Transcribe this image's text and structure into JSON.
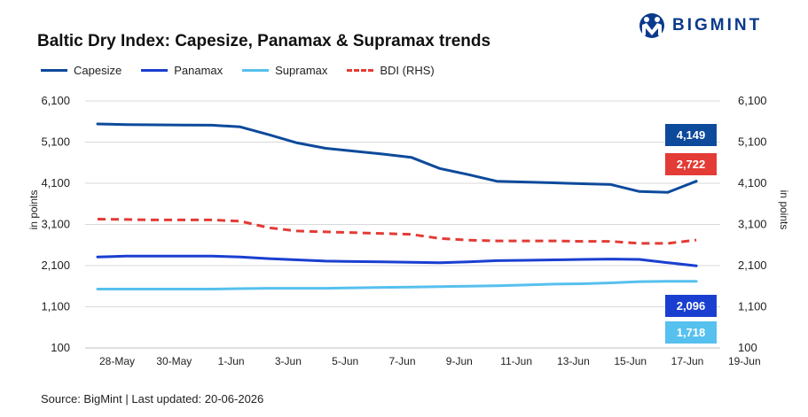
{
  "title": "Baltic Dry Index: Capesize, Panamax & Supramax trends",
  "brand": {
    "name": "BIGMINT"
  },
  "source": "Source: BigMint | Last updated: 20-06-2026",
  "colors": {
    "capesize": "#0d4a9b",
    "panamax": "#1a3fd0",
    "supramax": "#56c0ee",
    "bdi": "#e33b35",
    "grid": "#d9d9d9"
  },
  "chart_data": {
    "type": "line",
    "ylabel_left": "in points",
    "ylabel_right": "in points",
    "ylim_left": [
      100,
      6100
    ],
    "ylim_right": [
      100,
      6100
    ],
    "yticks": [
      "6,100",
      "5,100",
      "4,100",
      "3,100",
      "2,100",
      "1,100",
      "100"
    ],
    "grid": true,
    "legend_position": "top-left",
    "x_tick_labels": [
      "28-May",
      "30-May",
      "1-Jun",
      "3-Jun",
      "5-Jun",
      "7-Jun",
      "9-Jun",
      "11-Jun",
      "13-Jun",
      "15-Jun",
      "17-Jun",
      "19-Jun"
    ],
    "x": [
      "27-May",
      "28-May",
      "29-May",
      "30-May",
      "1-Jun",
      "2-Jun",
      "3-Jun",
      "4-Jun",
      "5-Jun",
      "6-Jun",
      "7-Jun",
      "8-Jun",
      "9-Jun",
      "10-Jun",
      "11-Jun",
      "12-Jun",
      "13-Jun",
      "14-Jun",
      "15-Jun",
      "16-Jun",
      "17-Jun",
      "18-Jun"
    ],
    "series": [
      {
        "name": "Capesize",
        "axis": "left",
        "style": "solid",
        "values": [
          5540,
          5525,
          5520,
          5515,
          5510,
          5470,
          5280,
          5080,
          4950,
          4880,
          4810,
          4730,
          4460,
          4310,
          4150,
          4130,
          4110,
          4090,
          4070,
          3900,
          3880,
          4149
        ],
        "end_label": "4,149"
      },
      {
        "name": "Panamax",
        "axis": "left",
        "style": "solid",
        "values": [
          2310,
          2330,
          2330,
          2330,
          2330,
          2310,
          2270,
          2240,
          2210,
          2200,
          2190,
          2180,
          2170,
          2190,
          2220,
          2230,
          2240,
          2250,
          2260,
          2250,
          2170,
          2096
        ],
        "end_label": "2,096"
      },
      {
        "name": "Supramax",
        "axis": "left",
        "style": "solid",
        "values": [
          1530,
          1530,
          1530,
          1530,
          1530,
          1540,
          1550,
          1550,
          1550,
          1560,
          1570,
          1580,
          1590,
          1600,
          1610,
          1630,
          1650,
          1660,
          1680,
          1710,
          1718,
          1718
        ],
        "end_label": "1,718"
      },
      {
        "name": "BDI (RHS)",
        "axis": "right",
        "style": "dashed",
        "values": [
          3230,
          3220,
          3210,
          3210,
          3210,
          3180,
          3020,
          2940,
          2920,
          2900,
          2880,
          2860,
          2760,
          2720,
          2700,
          2700,
          2700,
          2690,
          2690,
          2640,
          2640,
          2722
        ],
        "end_label": "2,722"
      }
    ]
  }
}
